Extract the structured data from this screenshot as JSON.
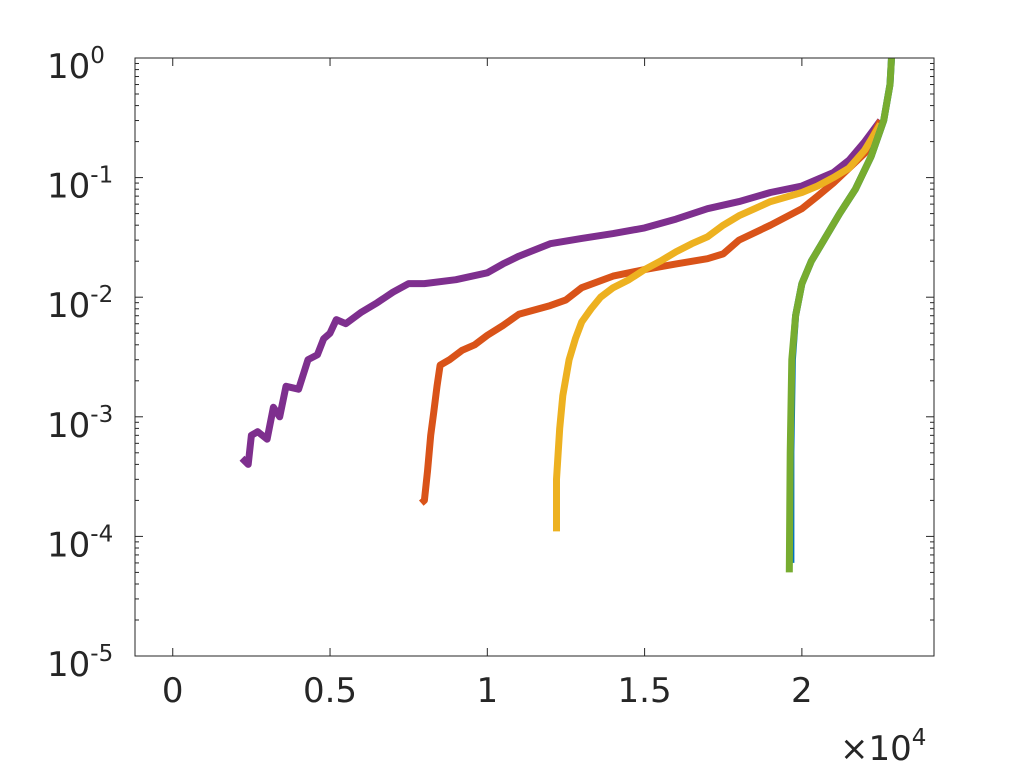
{
  "chart_data": {
    "type": "line",
    "title": "",
    "xlabel": "",
    "ylabel": "",
    "x_multiplier_label": {
      "prefix": "×10",
      "exponent": "4"
    },
    "xlim": [
      -0.12,
      2.42
    ],
    "ylim": [
      1e-05,
      1
    ],
    "yscale": "log",
    "grid": false,
    "x_ticks": [
      {
        "value": 0,
        "label": "0"
      },
      {
        "value": 0.5,
        "label": "0.5"
      },
      {
        "value": 1,
        "label": "1"
      },
      {
        "value": 1.5,
        "label": "1.5"
      },
      {
        "value": 2,
        "label": "2"
      }
    ],
    "y_ticks": [
      {
        "value": 1,
        "base": "10",
        "exp": "0"
      },
      {
        "value": 0.1,
        "base": "10",
        "exp": "-1"
      },
      {
        "value": 0.01,
        "base": "10",
        "exp": "-2"
      },
      {
        "value": 0.001,
        "base": "10",
        "exp": "-3"
      },
      {
        "value": 0.0001,
        "base": "10",
        "exp": "-4"
      },
      {
        "value": 1e-05,
        "base": "10",
        "exp": "-5"
      }
    ],
    "series": [
      {
        "color": "#7E2F8E",
        "points": [
          [
            0.22,
            0.00045
          ],
          [
            0.24,
            0.0004
          ],
          [
            0.25,
            0.0007
          ],
          [
            0.27,
            0.00075
          ],
          [
            0.3,
            0.00065
          ],
          [
            0.32,
            0.0012
          ],
          [
            0.34,
            0.001
          ],
          [
            0.36,
            0.0018
          ],
          [
            0.4,
            0.0017
          ],
          [
            0.43,
            0.003
          ],
          [
            0.46,
            0.0033
          ],
          [
            0.48,
            0.0045
          ],
          [
            0.5,
            0.005
          ],
          [
            0.52,
            0.0065
          ],
          [
            0.55,
            0.006
          ],
          [
            0.6,
            0.0075
          ],
          [
            0.65,
            0.009
          ],
          [
            0.7,
            0.011
          ],
          [
            0.75,
            0.013
          ],
          [
            0.8,
            0.013
          ],
          [
            0.9,
            0.014
          ],
          [
            1.0,
            0.016
          ],
          [
            1.05,
            0.019
          ],
          [
            1.1,
            0.022
          ],
          [
            1.2,
            0.028
          ],
          [
            1.3,
            0.031
          ],
          [
            1.4,
            0.034
          ],
          [
            1.5,
            0.038
          ],
          [
            1.6,
            0.045
          ],
          [
            1.7,
            0.055
          ],
          [
            1.8,
            0.063
          ],
          [
            1.9,
            0.075
          ],
          [
            2.0,
            0.085
          ],
          [
            2.1,
            0.11
          ],
          [
            2.15,
            0.14
          ],
          [
            2.2,
            0.2
          ],
          [
            2.25,
            0.3
          ]
        ]
      },
      {
        "color": "#D95319",
        "points": [
          [
            0.79,
            0.00019
          ],
          [
            0.8,
            0.0002
          ],
          [
            0.81,
            0.00035
          ],
          [
            0.82,
            0.0007
          ],
          [
            0.83,
            0.0011
          ],
          [
            0.84,
            0.0018
          ],
          [
            0.85,
            0.0027
          ],
          [
            0.88,
            0.003
          ],
          [
            0.92,
            0.0036
          ],
          [
            0.96,
            0.004
          ],
          [
            1.0,
            0.0048
          ],
          [
            1.05,
            0.0058
          ],
          [
            1.1,
            0.0072
          ],
          [
            1.2,
            0.0085
          ],
          [
            1.25,
            0.0095
          ],
          [
            1.3,
            0.012
          ],
          [
            1.4,
            0.015
          ],
          [
            1.5,
            0.017
          ],
          [
            1.6,
            0.019
          ],
          [
            1.7,
            0.021
          ],
          [
            1.75,
            0.023
          ],
          [
            1.8,
            0.03
          ],
          [
            1.9,
            0.04
          ],
          [
            2.0,
            0.055
          ],
          [
            2.05,
            0.07
          ],
          [
            2.1,
            0.09
          ],
          [
            2.2,
            0.16
          ],
          [
            2.25,
            0.3
          ]
        ]
      },
      {
        "color": "#EDB120",
        "points": [
          [
            1.22,
            0.00011
          ],
          [
            1.22,
            0.0003
          ],
          [
            1.23,
            0.0008
          ],
          [
            1.24,
            0.0015
          ],
          [
            1.26,
            0.003
          ],
          [
            1.28,
            0.0045
          ],
          [
            1.3,
            0.0062
          ],
          [
            1.33,
            0.008
          ],
          [
            1.36,
            0.01
          ],
          [
            1.4,
            0.012
          ],
          [
            1.45,
            0.014
          ],
          [
            1.5,
            0.017
          ],
          [
            1.55,
            0.02
          ],
          [
            1.6,
            0.024
          ],
          [
            1.65,
            0.028
          ],
          [
            1.7,
            0.032
          ],
          [
            1.75,
            0.04
          ],
          [
            1.8,
            0.048
          ],
          [
            1.85,
            0.055
          ],
          [
            1.9,
            0.063
          ],
          [
            2.0,
            0.075
          ],
          [
            2.05,
            0.085
          ],
          [
            2.1,
            0.1
          ],
          [
            2.15,
            0.12
          ],
          [
            2.2,
            0.17
          ],
          [
            2.25,
            0.28
          ]
        ]
      },
      {
        "color": "#0072BD",
        "points": [
          [
            1.965,
            6e-05
          ],
          [
            1.965,
            0.0005
          ],
          [
            1.97,
            0.003
          ],
          [
            1.98,
            0.007
          ],
          [
            2.0,
            0.013
          ],
          [
            2.03,
            0.02
          ],
          [
            2.07,
            0.03
          ],
          [
            2.12,
            0.05
          ],
          [
            2.17,
            0.08
          ],
          [
            2.22,
            0.15
          ],
          [
            2.26,
            0.3
          ],
          [
            2.28,
            0.6
          ],
          [
            2.285,
            1.0
          ]
        ]
      },
      {
        "color": "#77AC30",
        "points": [
          [
            1.96,
            5e-05
          ],
          [
            1.963,
            0.0005
          ],
          [
            1.968,
            0.003
          ],
          [
            1.98,
            0.007
          ],
          [
            2.0,
            0.013
          ],
          [
            2.03,
            0.02
          ],
          [
            2.07,
            0.03
          ],
          [
            2.12,
            0.05
          ],
          [
            2.17,
            0.08
          ],
          [
            2.22,
            0.15
          ],
          [
            2.26,
            0.3
          ],
          [
            2.28,
            0.6
          ],
          [
            2.285,
            1.0
          ]
        ]
      }
    ]
  }
}
